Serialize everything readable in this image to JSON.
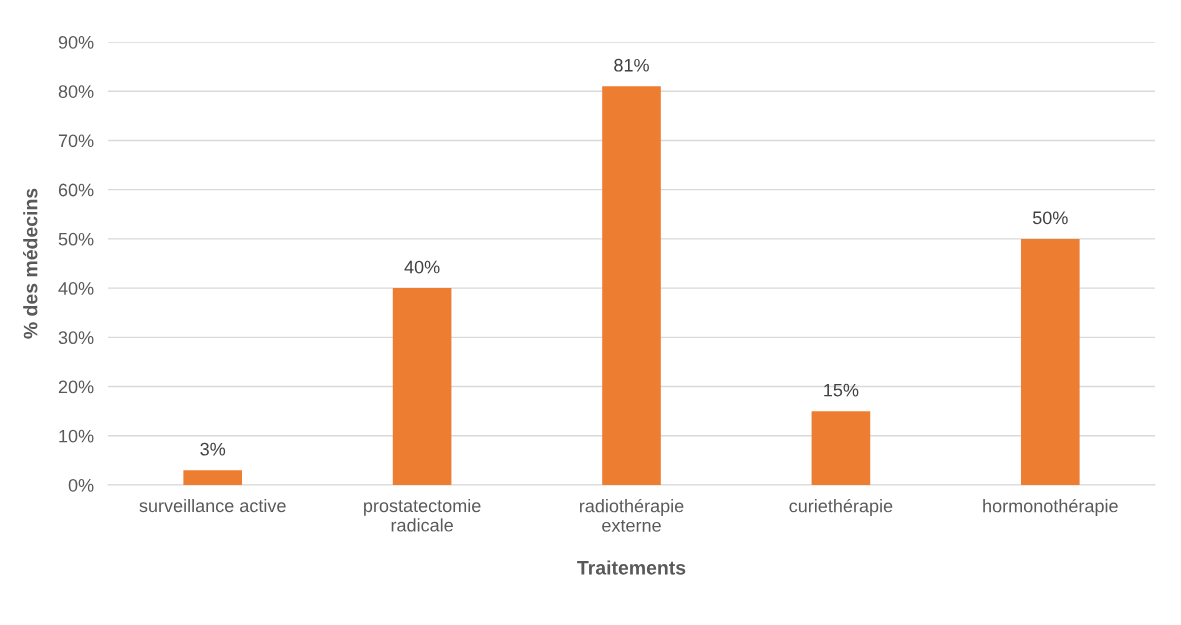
{
  "chart_data": {
    "type": "bar",
    "xlabel": "Traitements",
    "ylabel": "% des médecins",
    "categories": [
      "surveillance active",
      "prostatectomie\nradicale",
      "radiothérapie\nexterne",
      "curiethérapie",
      "hormonothérapie"
    ],
    "values": [
      3,
      40,
      81,
      15,
      50
    ],
    "color": "#ed7d31",
    "value_labels": [
      "3%",
      "40%",
      "81%",
      "15%",
      "50%"
    ],
    "ylim": [
      0,
      90
    ],
    "yticks": [
      {
        "value": 0,
        "label": "0%"
      },
      {
        "value": 10,
        "label": "10%"
      },
      {
        "value": 20,
        "label": "20%"
      },
      {
        "value": 30,
        "label": "30%"
      },
      {
        "value": 40,
        "label": "40%"
      },
      {
        "value": 50,
        "label": "50%"
      },
      {
        "value": 60,
        "label": "60%"
      },
      {
        "value": 70,
        "label": "70%"
      },
      {
        "value": 80,
        "label": "80%"
      },
      {
        "value": 90,
        "label": "90%"
      }
    ],
    "grid": "y"
  }
}
